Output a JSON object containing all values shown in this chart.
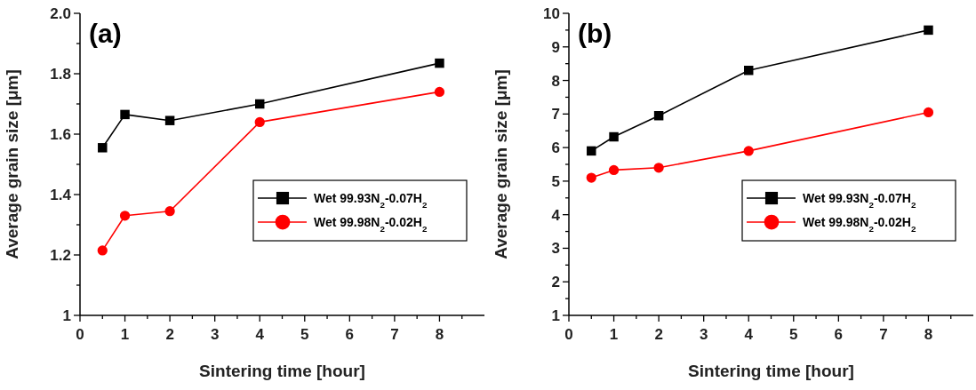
{
  "chart_data": [
    {
      "type": "line",
      "title": "(a)",
      "xlabel": "Sintering time [hour]",
      "ylabel": "Average grain size [μm]",
      "x": [
        0.5,
        1,
        2,
        4,
        8
      ],
      "series": [
        {
          "name": "Wet 99.93N$_{2}$-0.07H$_{2}$",
          "color": "#000000",
          "marker": "square",
          "values": [
            1.555,
            1.665,
            1.645,
            1.7,
            1.835
          ]
        },
        {
          "name": "Wet 99.98N$_{2}$-0.02H$_{2}$",
          "color": "#ff0000",
          "marker": "circle",
          "values": [
            1.215,
            1.33,
            1.345,
            1.64,
            1.74
          ]
        }
      ],
      "xlim": [
        0,
        9
      ],
      "xticks": [
        0,
        {
          "value": 0.5,
          "label": null
        },
        1,
        {
          "value": 1.5,
          "label": null
        },
        2,
        {
          "value": 2.5,
          "label": null
        },
        3,
        {
          "value": 3.5,
          "label": null
        },
        4,
        {
          "value": 4.5,
          "label": null
        },
        5,
        {
          "value": 5.5,
          "label": null
        },
        6,
        {
          "value": 6.5,
          "label": null
        },
        7,
        {
          "value": 7.5,
          "label": null
        },
        8,
        {
          "value": 8.5,
          "label": null
        }
      ],
      "ylim": [
        1,
        2
      ],
      "yticks": [
        1,
        {
          "value": 1.1,
          "label": null
        },
        1.2,
        {
          "value": 1.3,
          "label": null
        },
        1.4,
        {
          "value": 1.5,
          "label": null
        },
        1.6,
        {
          "value": 1.7,
          "label": null
        },
        1.8,
        {
          "value": 1.9,
          "label": null
        },
        {
          "value": 2,
          "label": "2.0"
        }
      ],
      "legend": "right"
    },
    {
      "type": "line",
      "title": "(b)",
      "xlabel": "Sintering time [hour]",
      "ylabel": "Average grain size [μm]",
      "x": [
        0.5,
        1,
        2,
        4,
        8
      ],
      "series": [
        {
          "name": "Wet 99.93N$_{2}$-0.07H$_{2}$",
          "color": "#000000",
          "marker": "square",
          "values": [
            5.9,
            6.32,
            6.95,
            8.3,
            9.5
          ]
        },
        {
          "name": "Wet 99.98N$_{2}$-0.02H$_{2}$",
          "color": "#ff0000",
          "marker": "circle",
          "values": [
            5.1,
            5.33,
            5.4,
            5.9,
            7.05
          ]
        }
      ],
      "xlim": [
        0,
        9
      ],
      "xticks": [
        0,
        {
          "value": 0.5,
          "label": null
        },
        1,
        {
          "value": 1.5,
          "label": null
        },
        2,
        {
          "value": 2.5,
          "label": null
        },
        3,
        {
          "value": 3.5,
          "label": null
        },
        4,
        {
          "value": 4.5,
          "label": null
        },
        5,
        {
          "value": 5.5,
          "label": null
        },
        6,
        {
          "value": 6.5,
          "label": null
        },
        7,
        {
          "value": 7.5,
          "label": null
        },
        8,
        {
          "value": 8.5,
          "label": null
        }
      ],
      "ylim": [
        1,
        10
      ],
      "yticks": [
        1,
        {
          "value": 1.5,
          "label": null
        },
        2,
        {
          "value": 2.5,
          "label": null
        },
        3,
        {
          "value": 3.5,
          "label": null
        },
        4,
        {
          "value": 4.5,
          "label": null
        },
        5,
        {
          "value": 5.5,
          "label": null
        },
        6,
        {
          "value": 6.5,
          "label": null
        },
        7,
        {
          "value": 7.5,
          "label": null
        },
        8,
        {
          "value": 8.5,
          "label": null
        },
        9,
        {
          "value": 9.5,
          "label": null
        },
        10
      ],
      "legend": "right"
    }
  ]
}
